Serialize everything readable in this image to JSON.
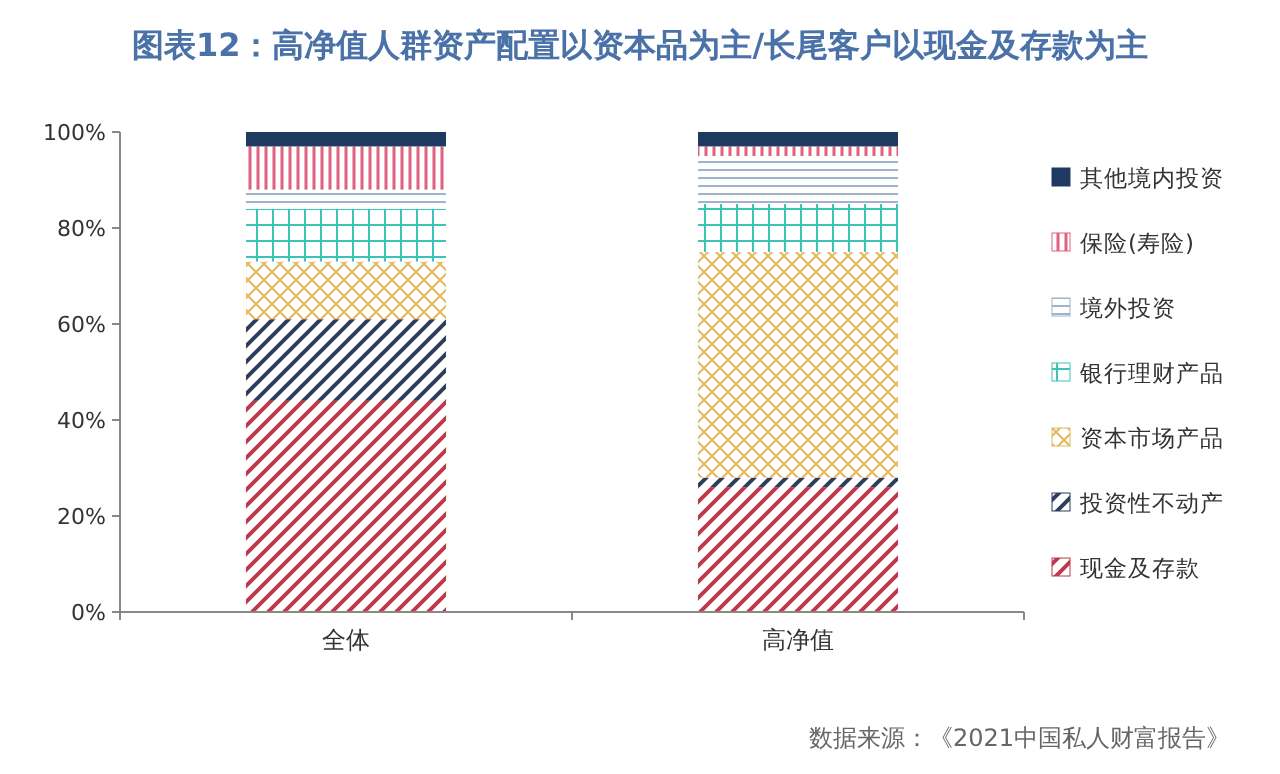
{
  "chart_data": {
    "type": "bar",
    "title": "图表12：高净值人群资产配置以资本品为主/长尾客户以现金及存款为主",
    "categories": [
      "全体",
      "高净值"
    ],
    "stacked": true,
    "series": [
      {
        "name": "现金及存款",
        "color": "#c0394b",
        "values": [
          44,
          26
        ]
      },
      {
        "name": "投资性不动产",
        "color": "#2c3e5c",
        "values": [
          17,
          2
        ]
      },
      {
        "name": "资本市场产品",
        "color": "#e3b95a",
        "values": [
          12,
          47
        ]
      },
      {
        "name": "银行理财产品",
        "color": "#3cc4b8",
        "values": [
          11,
          10
        ]
      },
      {
        "name": "境外投资",
        "color": "#9fb4c8",
        "values": [
          4,
          10
        ]
      },
      {
        "name": "保险(寿险)",
        "color": "#e06080",
        "values": [
          9,
          2
        ]
      },
      {
        "name": "其他境内投资",
        "color": "#1f3a60",
        "values": [
          3,
          3
        ]
      }
    ],
    "ylim": [
      0,
      100
    ],
    "yticks": [
      {
        "value": 0,
        "label": "0%"
      },
      {
        "value": 20,
        "label": "20%"
      },
      {
        "value": 40,
        "label": "40%"
      },
      {
        "value": 60,
        "label": "60%"
      },
      {
        "value": 80,
        "label": "80%"
      },
      {
        "value": 100,
        "label": "100%"
      }
    ],
    "legend": "right",
    "grid": false,
    "annotations": [
      "数据来源：《2021中国私人财富报告》"
    ]
  }
}
